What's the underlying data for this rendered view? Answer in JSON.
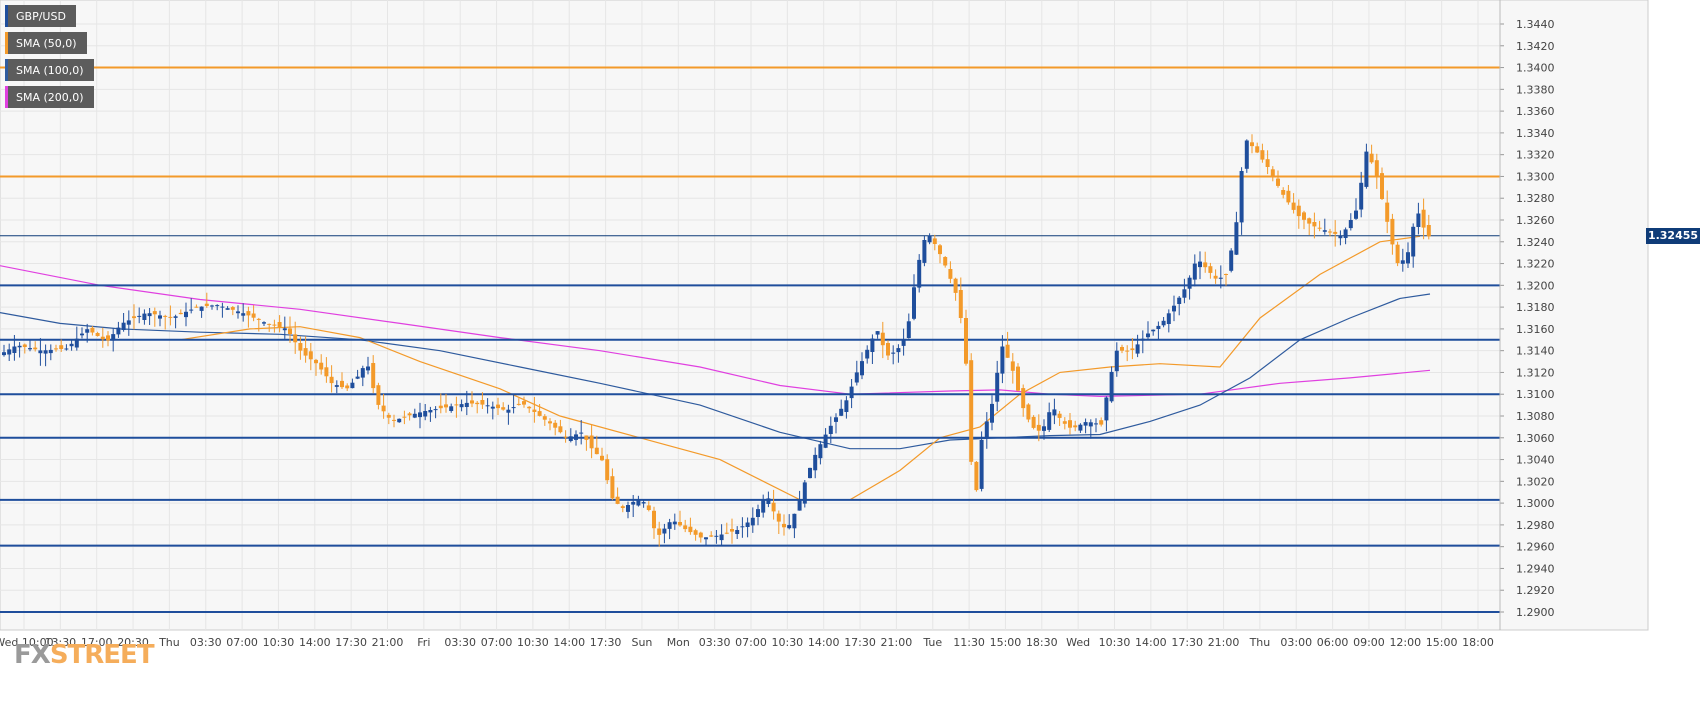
{
  "legend": [
    {
      "label": "GBP/USD",
      "color": "#1f4e9c"
    },
    {
      "label": "SMA (50,0)",
      "color": "#f39a2a"
    },
    {
      "label": "SMA (100,0)",
      "color": "#2f5b9e"
    },
    {
      "label": "SMA (200,0)",
      "color": "#e040e0"
    }
  ],
  "watermark": {
    "fx": "FX",
    "street": "STREET"
  },
  "current_price_label": "1.32455",
  "chart_data": {
    "type": "candlestick",
    "symbol": "GBP/USD",
    "ylim": [
      1.288,
      1.345
    ],
    "y_ticks": [
      "1.3440",
      "1.3420",
      "1.3400",
      "1.3380",
      "1.3360",
      "1.3340",
      "1.3320",
      "1.3300",
      "1.3280",
      "1.3260",
      "1.3240",
      "1.3220",
      "1.3200",
      "1.3180",
      "1.3160",
      "1.3140",
      "1.3120",
      "1.3100",
      "1.3080",
      "1.3060",
      "1.3040",
      "1.3020",
      "1.3000",
      "1.2980",
      "1.2960",
      "1.2940",
      "1.2920",
      "1.2900"
    ],
    "x_ticks": [
      "Wed 10:00",
      "13:30",
      "17:00",
      "20:30",
      "Thu",
      "03:30",
      "07:00",
      "10:30",
      "14:00",
      "17:30",
      "21:00",
      "Fri",
      "03:30",
      "07:00",
      "10:30",
      "14:00",
      "17:30",
      "Sun",
      "Mon",
      "03:30",
      "07:00",
      "10:30",
      "14:00",
      "17:30",
      "21:00",
      "Tue",
      "11:30",
      "15:00",
      "18:30",
      "Wed",
      "10:30",
      "14:00",
      "17:30",
      "21:00",
      "Thu",
      "03:00",
      "06:00",
      "09:00",
      "12:00",
      "15:00",
      "18:00"
    ],
    "current_price": 1.32455,
    "horizontal_levels": [
      {
        "value": 1.34,
        "color": "#f39a2a"
      },
      {
        "value": 1.33,
        "color": "#f39a2a"
      },
      {
        "value": 1.32455,
        "color": "#0f3c78"
      },
      {
        "value": 1.32,
        "color": "#1f4e9c"
      },
      {
        "value": 1.315,
        "color": "#1f4e9c"
      },
      {
        "value": 1.31,
        "color": "#1f4e9c"
      },
      {
        "value": 1.306,
        "color": "#1f4e9c"
      },
      {
        "value": 1.3003,
        "color": "#1f4e9c"
      },
      {
        "value": 1.2961,
        "color": "#1f4e9c"
      },
      {
        "value": 1.29,
        "color": "#1f4e9c"
      }
    ],
    "price_path": [
      [
        0,
        1.3135
      ],
      [
        20,
        1.3145
      ],
      [
        45,
        1.314
      ],
      [
        70,
        1.3142
      ],
      [
        90,
        1.316
      ],
      [
        110,
        1.3148
      ],
      [
        125,
        1.3165
      ],
      [
        150,
        1.3175
      ],
      [
        175,
        1.317
      ],
      [
        200,
        1.318
      ],
      [
        220,
        1.3182
      ],
      [
        245,
        1.3175
      ],
      [
        270,
        1.3165
      ],
      [
        290,
        1.316
      ],
      [
        305,
        1.3138
      ],
      [
        320,
        1.3128
      ],
      [
        335,
        1.311
      ],
      [
        350,
        1.3105
      ],
      [
        360,
        1.3115
      ],
      [
        370,
        1.313
      ],
      [
        380,
        1.3092
      ],
      [
        395,
        1.3075
      ],
      [
        410,
        1.308
      ],
      [
        430,
        1.3085
      ],
      [
        450,
        1.3088
      ],
      [
        470,
        1.3092
      ],
      [
        490,
        1.309
      ],
      [
        510,
        1.3085
      ],
      [
        525,
        1.3092
      ],
      [
        540,
        1.3082
      ],
      [
        555,
        1.3072
      ],
      [
        570,
        1.306
      ],
      [
        585,
        1.3065
      ],
      [
        595,
        1.305
      ],
      [
        605,
        1.304
      ],
      [
        615,
        1.3005
      ],
      [
        625,
        1.2995
      ],
      [
        640,
        1.3003
      ],
      [
        650,
        1.3
      ],
      [
        660,
        1.2968
      ],
      [
        675,
        1.2985
      ],
      [
        690,
        1.2975
      ],
      [
        705,
        1.2968
      ],
      [
        720,
        1.297
      ],
      [
        740,
        1.2975
      ],
      [
        755,
        1.2985
      ],
      [
        770,
        1.3008
      ],
      [
        780,
        1.2985
      ],
      [
        790,
        1.2975
      ],
      [
        800,
        1.2995
      ],
      [
        810,
        1.3025
      ],
      [
        820,
        1.3048
      ],
      [
        830,
        1.3065
      ],
      [
        840,
        1.308
      ],
      [
        850,
        1.3095
      ],
      [
        860,
        1.312
      ],
      [
        870,
        1.314
      ],
      [
        880,
        1.316
      ],
      [
        890,
        1.3135
      ],
      [
        900,
        1.314
      ],
      [
        910,
        1.3155
      ],
      [
        920,
        1.3215
      ],
      [
        930,
        1.325
      ],
      [
        940,
        1.3235
      ],
      [
        950,
        1.3215
      ],
      [
        960,
        1.319
      ],
      [
        968,
        1.315
      ],
      [
        974,
        1.304
      ],
      [
        980,
        1.301
      ],
      [
        985,
        1.306
      ],
      [
        995,
        1.309
      ],
      [
        1005,
        1.3145
      ],
      [
        1015,
        1.3125
      ],
      [
        1025,
        1.309
      ],
      [
        1035,
        1.307
      ],
      [
        1045,
        1.3065
      ],
      [
        1055,
        1.309
      ],
      [
        1065,
        1.3075
      ],
      [
        1075,
        1.3068
      ],
      [
        1090,
        1.3075
      ],
      [
        1105,
        1.3072
      ],
      [
        1112,
        1.311
      ],
      [
        1120,
        1.314
      ],
      [
        1135,
        1.314
      ],
      [
        1150,
        1.3155
      ],
      [
        1165,
        1.3165
      ],
      [
        1180,
        1.3185
      ],
      [
        1190,
        1.32
      ],
      [
        1200,
        1.3225
      ],
      [
        1210,
        1.3215
      ],
      [
        1220,
        1.3205
      ],
      [
        1230,
        1.321
      ],
      [
        1240,
        1.326
      ],
      [
        1248,
        1.3335
      ],
      [
        1258,
        1.3325
      ],
      [
        1270,
        1.331
      ],
      [
        1285,
        1.3285
      ],
      [
        1300,
        1.3265
      ],
      [
        1315,
        1.3255
      ],
      [
        1330,
        1.325
      ],
      [
        1345,
        1.3245
      ],
      [
        1360,
        1.327
      ],
      [
        1370,
        1.3325
      ],
      [
        1380,
        1.33
      ],
      [
        1390,
        1.326
      ],
      [
        1400,
        1.322
      ],
      [
        1410,
        1.3225
      ],
      [
        1420,
        1.327
      ],
      [
        1430,
        1.3245
      ]
    ],
    "sma50_path": [
      [
        180,
        1.315
      ],
      [
        250,
        1.316
      ],
      [
        300,
        1.3162
      ],
      [
        360,
        1.3152
      ],
      [
        420,
        1.313
      ],
      [
        500,
        1.3105
      ],
      [
        560,
        1.308
      ],
      [
        640,
        1.306
      ],
      [
        720,
        1.304
      ],
      [
        800,
        1.3003
      ],
      [
        850,
        1.3003
      ],
      [
        900,
        1.303
      ],
      [
        940,
        1.306
      ],
      [
        980,
        1.307
      ],
      [
        1020,
        1.31
      ],
      [
        1060,
        1.312
      ],
      [
        1110,
        1.3125
      ],
      [
        1160,
        1.3128
      ],
      [
        1220,
        1.3125
      ],
      [
        1260,
        1.317
      ],
      [
        1320,
        1.321
      ],
      [
        1380,
        1.324
      ],
      [
        1420,
        1.3245
      ]
    ],
    "sma100_path": [
      [
        0,
        1.3175
      ],
      [
        60,
        1.3165
      ],
      [
        120,
        1.316
      ],
      [
        200,
        1.3157
      ],
      [
        280,
        1.3155
      ],
      [
        360,
        1.315
      ],
      [
        440,
        1.314
      ],
      [
        520,
        1.3125
      ],
      [
        600,
        1.311
      ],
      [
        700,
        1.309
      ],
      [
        780,
        1.3065
      ],
      [
        850,
        1.305
      ],
      [
        900,
        1.305
      ],
      [
        950,
        1.3058
      ],
      [
        1000,
        1.306
      ],
      [
        1050,
        1.3062
      ],
      [
        1100,
        1.3063
      ],
      [
        1150,
        1.3075
      ],
      [
        1200,
        1.309
      ],
      [
        1250,
        1.3115
      ],
      [
        1300,
        1.315
      ],
      [
        1350,
        1.317
      ],
      [
        1400,
        1.3188
      ],
      [
        1430,
        1.3192
      ]
    ],
    "sma200_path": [
      [
        0,
        1.3218
      ],
      [
        100,
        1.32
      ],
      [
        200,
        1.3187
      ],
      [
        300,
        1.3178
      ],
      [
        400,
        1.3165
      ],
      [
        500,
        1.3152
      ],
      [
        600,
        1.314
      ],
      [
        700,
        1.3125
      ],
      [
        780,
        1.3108
      ],
      [
        850,
        1.31
      ],
      [
        950,
        1.3103
      ],
      [
        1000,
        1.3104
      ],
      [
        1050,
        1.31
      ],
      [
        1100,
        1.3098
      ],
      [
        1200,
        1.31
      ],
      [
        1280,
        1.311
      ],
      [
        1350,
        1.3115
      ],
      [
        1430,
        1.3122
      ]
    ]
  }
}
